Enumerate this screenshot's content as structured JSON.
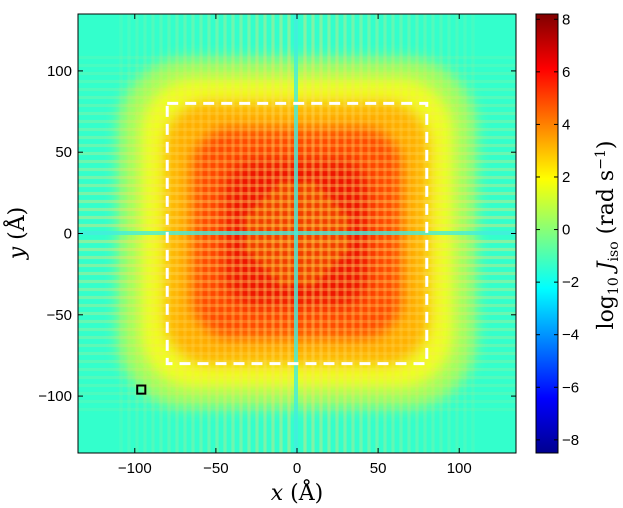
{
  "chart_data": [
    {
      "type": "heatmap",
      "title": "",
      "xlabel": {
        "var": "x",
        "unit": "(Å)"
      },
      "ylabel": {
        "var": "y",
        "unit": "(Å)"
      },
      "xlim": [
        -135,
        135
      ],
      "ylim": [
        -135,
        135
      ],
      "xticks": [
        -100,
        -50,
        0,
        50,
        100
      ],
      "yticks": [
        -100,
        -50,
        0,
        50,
        100
      ],
      "xtick_labels": [
        "−100",
        "−50",
        "0",
        "50",
        "100"
      ],
      "ytick_labels": [
        "−100",
        "−50",
        "0",
        "50",
        "100"
      ],
      "grid": false,
      "colormap": "jet",
      "overlays": [
        {
          "kind": "dashed-rectangle",
          "color": "#ffffff",
          "x_range": [
            -80,
            80
          ],
          "y_range": [
            -80,
            80
          ]
        },
        {
          "kind": "square-marker",
          "color": "#000000",
          "center": [
            -96,
            -96
          ],
          "size": 5
        }
      ]
    },
    {
      "type": "colorbar",
      "range": [
        -8.5,
        8.2
      ],
      "ticks": [
        -8,
        -6,
        -4,
        -2,
        0,
        2,
        4,
        6,
        8
      ],
      "tick_labels": [
        "−8",
        "−6",
        "−4",
        "−2",
        "0",
        "2",
        "4",
        "6",
        "8"
      ],
      "label": {
        "prefix": "log",
        "prefix_sub": "10",
        "var": "J",
        "var_sub": "iso",
        "unit": "(rad s",
        "unit_sup": "−1",
        "unit_close": ")"
      }
    }
  ]
}
